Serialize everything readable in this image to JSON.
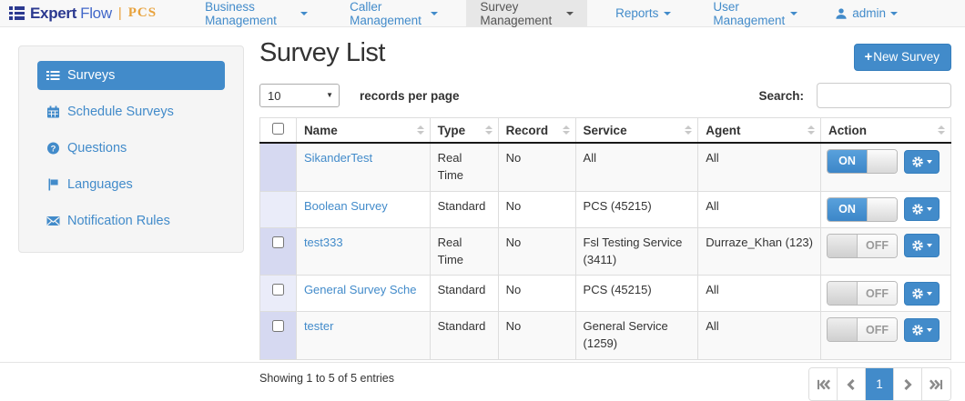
{
  "navbar": {
    "logo": {
      "part1": "Expert",
      "part2": "Flow",
      "separator": "|",
      "part3": "PCS"
    },
    "items": [
      {
        "label": "Business Management"
      },
      {
        "label": "Caller Management"
      },
      {
        "label": "Survey Management",
        "active": true
      },
      {
        "label": "Reports"
      },
      {
        "label": "User Management"
      }
    ],
    "user": "admin"
  },
  "sidebar": {
    "items": [
      {
        "label": "Surveys",
        "icon": "list-icon",
        "active": true
      },
      {
        "label": "Schedule Surveys",
        "icon": "calendar-icon"
      },
      {
        "label": "Questions",
        "icon": "question-circle-icon"
      },
      {
        "label": "Languages",
        "icon": "flag-icon"
      },
      {
        "label": "Notification Rules",
        "icon": "envelope-icon"
      }
    ]
  },
  "main": {
    "title": "Survey List",
    "new_survey_button": {
      "plus": "+",
      "label": "New Survey"
    },
    "records_per_page": {
      "selected": "10",
      "label": "records per page"
    },
    "search": {
      "label": "Search:",
      "value": ""
    },
    "table": {
      "columns": [
        "Name",
        "Type",
        "Record",
        "Service",
        "Agent",
        "Action"
      ],
      "rows": [
        {
          "name": "SikanderTest",
          "type": "Real Time",
          "record": "No",
          "service": "All",
          "agent": "All",
          "state": "ON",
          "has_checkbox": false
        },
        {
          "name": "Boolean Survey",
          "type": "Standard",
          "record": "No",
          "service": "PCS (45215)",
          "agent": "All",
          "state": "ON",
          "has_checkbox": false
        },
        {
          "name": "test333",
          "type": "Real Time",
          "record": "No",
          "service": "Fsl Testing Service (3411)",
          "agent": "Durraze_Khan (123)",
          "state": "OFF",
          "has_checkbox": true
        },
        {
          "name": "General Survey Sche",
          "type": "Standard",
          "record": "No",
          "service": "PCS (45215)",
          "agent": "All",
          "state": "OFF",
          "has_checkbox": true
        },
        {
          "name": "tester",
          "type": "Standard",
          "record": "No",
          "service": "General Service (1259)",
          "agent": "All",
          "state": "OFF",
          "has_checkbox": true
        }
      ]
    },
    "footer": {
      "info": "Showing 1 to 5 of 5 entries",
      "pagination": {
        "current": "1"
      }
    }
  },
  "colors": {
    "accent_blue": "#428bca",
    "navbar_bg": "#f8f8f8",
    "active_nav_bg": "#e7e7e7",
    "sidebar_bg": "#f5f5f5",
    "logo_navy": "#2b3990",
    "logo_blue": "#4268c9",
    "logo_orange": "#e8a23c",
    "row_stripe": "#f9f9f9",
    "sorted_cell_odd": "#d6d9f1",
    "sorted_cell_even": "#eaecf9"
  }
}
